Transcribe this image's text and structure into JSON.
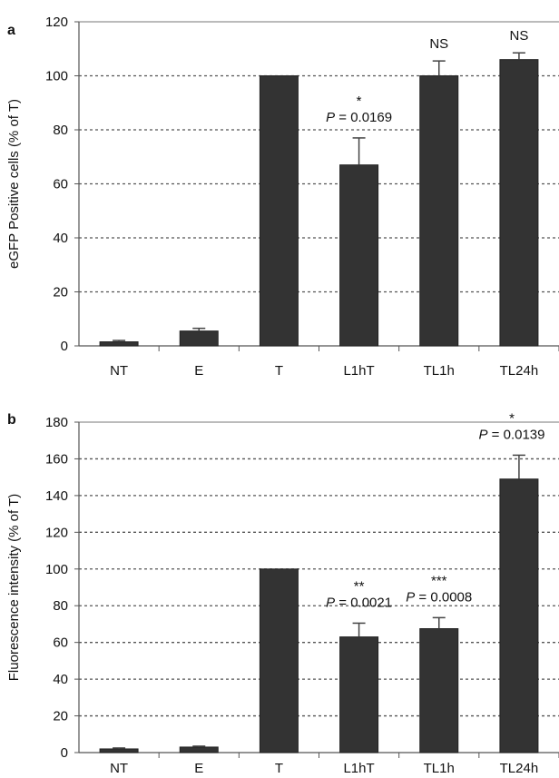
{
  "chart_data": [
    {
      "panel_label": "a",
      "type": "bar",
      "ylabel": "eGFP Positive cells (% of T)",
      "ylim": [
        0,
        120
      ],
      "yticks": [
        0,
        20,
        40,
        60,
        80,
        100,
        120
      ],
      "grid": "dashed horizontal",
      "categories": [
        "NT",
        "E",
        "T",
        "L1hT",
        "TL1h",
        "TL24h"
      ],
      "values": [
        1.5,
        5.5,
        100,
        67,
        100,
        106
      ],
      "errors": [
        0.5,
        1,
        0,
        10,
        5.5,
        2.5
      ],
      "annotations": [
        {
          "category": "L1hT",
          "stars": "*",
          "p_label": "P",
          "p_value": " = 0.0169"
        },
        {
          "category": "TL1h",
          "text": "NS"
        },
        {
          "category": "TL24h",
          "text": "NS"
        }
      ]
    },
    {
      "panel_label": "b",
      "type": "bar",
      "ylabel": "Fluorescence intensity (% of T)",
      "ylim": [
        0,
        180
      ],
      "yticks": [
        0,
        20,
        40,
        60,
        80,
        100,
        120,
        140,
        160,
        180
      ],
      "grid": "dashed horizontal",
      "categories": [
        "NT",
        "E",
        "T",
        "L1hT",
        "TL1h",
        "TL24h"
      ],
      "values": [
        2,
        3,
        100,
        63,
        67.5,
        149
      ],
      "errors": [
        0.5,
        0.5,
        0,
        7.5,
        6,
        13
      ],
      "annotations": [
        {
          "category": "L1hT",
          "stars": "**",
          "p_label": "P",
          "p_value": " = 0.0021"
        },
        {
          "category": "TL1h",
          "stars": "***",
          "p_label": "P",
          "p_value": " = 0.0008"
        },
        {
          "category": "TL24h",
          "stars": "*",
          "p_label": "P",
          "p_value": " = 0.0139"
        }
      ]
    }
  ]
}
